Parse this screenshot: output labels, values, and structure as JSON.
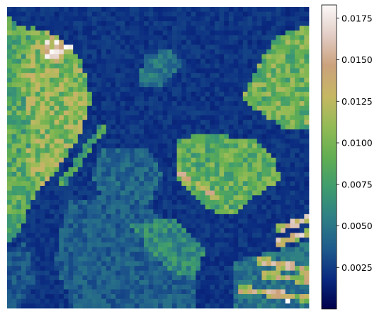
{
  "chart_data": {
    "type": "heatmap",
    "title": "",
    "xlabel": "",
    "ylabel": "",
    "grid": false,
    "axes_visible": false,
    "grid_size": [
      64,
      64
    ],
    "colormap": "gist_earth",
    "colormap_stops": [
      "#00004a",
      "#0a2a80",
      "#1f5c8c",
      "#2e7f85",
      "#3e9c6e",
      "#62ae52",
      "#93bb55",
      "#c6b763",
      "#cba27c",
      "#e2cdc5",
      "#fcf9f9"
    ],
    "colorbar": {
      "range": [
        0.0,
        0.0183
      ],
      "ticks": [
        0.0025,
        0.005,
        0.0075,
        0.01,
        0.0125,
        0.015,
        0.0175
      ],
      "tick_labels": [
        "0.0025",
        "0.0050",
        "0.0075",
        "0.0100",
        "0.0125",
        "0.0150",
        "0.0175"
      ]
    },
    "regions": [
      {
        "shape": "polygon",
        "points": [
          [
            0,
            2
          ],
          [
            8,
            7
          ],
          [
            13,
            13
          ],
          [
            16,
            20
          ],
          [
            14,
            28
          ],
          [
            9,
            35
          ],
          [
            5,
            42
          ],
          [
            3,
            48
          ],
          [
            0,
            50
          ]
        ],
        "value": 0.0085
      },
      {
        "shape": "polygon",
        "points": [
          [
            5,
            4
          ],
          [
            11,
            6
          ],
          [
            16,
            12
          ],
          [
            18,
            20
          ],
          [
            15,
            28
          ],
          [
            11,
            34
          ],
          [
            7,
            39
          ],
          [
            4,
            35
          ],
          [
            5,
            25
          ],
          [
            3,
            15
          ]
        ],
        "value": 0.0105
      },
      {
        "shape": "circle",
        "center": [
          10,
          9
        ],
        "radius": 2.6,
        "value": 0.0145
      },
      {
        "shape": "polygon",
        "points": [
          [
            57,
            6
          ],
          [
            64,
            4
          ],
          [
            64,
            26
          ],
          [
            59,
            26
          ],
          [
            53,
            22
          ],
          [
            50,
            19
          ],
          [
            53,
            13
          ]
        ],
        "value": 0.0095
      },
      {
        "shape": "polygon",
        "points": [
          [
            36,
            28
          ],
          [
            43,
            27
          ],
          [
            52,
            28
          ],
          [
            57,
            32
          ],
          [
            58,
            37
          ],
          [
            53,
            40
          ],
          [
            49,
            44
          ],
          [
            45,
            44
          ],
          [
            40,
            41
          ],
          [
            36,
            36
          ]
        ],
        "value": 0.0088
      },
      {
        "shape": "polygon",
        "points": [
          [
            29,
            10
          ],
          [
            35,
            9
          ],
          [
            38,
            12
          ],
          [
            33,
            17
          ],
          [
            28,
            17
          ]
        ],
        "value": 0.005
      },
      {
        "shape": "polygon",
        "points": [
          [
            20,
            30
          ],
          [
            30,
            30
          ],
          [
            33,
            36
          ],
          [
            30,
            42
          ],
          [
            21,
            42
          ],
          [
            18,
            36
          ]
        ],
        "value": 0.0042
      },
      {
        "shape": "polygon",
        "points": [
          [
            13,
            41
          ],
          [
            26,
            40
          ],
          [
            35,
            46
          ],
          [
            40,
            56
          ],
          [
            40,
            64
          ],
          [
            14,
            64
          ],
          [
            10,
            54
          ]
        ],
        "value": 0.0038
      },
      {
        "shape": "polygon",
        "points": [
          [
            26,
            46
          ],
          [
            36,
            45
          ],
          [
            42,
            52
          ],
          [
            40,
            58
          ],
          [
            33,
            55
          ]
        ],
        "value": 0.0062
      },
      {
        "shape": "polygon",
        "points": [
          [
            48,
            54
          ],
          [
            64,
            50
          ],
          [
            64,
            64
          ],
          [
            48,
            64
          ]
        ],
        "value": 0.0048
      },
      {
        "shape": "polygon",
        "points": [
          [
            0,
            52
          ],
          [
            4,
            50
          ],
          [
            6,
            58
          ],
          [
            2,
            64
          ],
          [
            0,
            64
          ]
        ],
        "value": 0.0035
      }
    ],
    "streaks": [
      {
        "from": [
          37,
          36
        ],
        "to": [
          44,
          40
        ],
        "value": 0.0122
      },
      {
        "from": [
          58,
          47
        ],
        "to": [
          64,
          45
        ],
        "value": 0.013
      },
      {
        "from": [
          58,
          50
        ],
        "to": [
          64,
          48
        ],
        "value": 0.0135
      },
      {
        "from": [
          54,
          54
        ],
        "to": [
          64,
          56
        ],
        "value": 0.0128
      },
      {
        "from": [
          55,
          57
        ],
        "to": [
          64,
          58
        ],
        "value": 0.012
      },
      {
        "from": [
          50,
          60
        ],
        "to": [
          64,
          62
        ],
        "value": 0.0125
      },
      {
        "from": [
          12,
          37
        ],
        "to": [
          20,
          26
        ],
        "value": 0.0075
      }
    ],
    "hotspots": [
      {
        "cell": [
          12,
          8
        ],
        "value": 0.0183
      },
      {
        "cell": [
          13,
          8
        ],
        "value": 0.0178
      },
      {
        "cell": [
          59,
          62
        ],
        "value": 0.0183
      }
    ]
  }
}
